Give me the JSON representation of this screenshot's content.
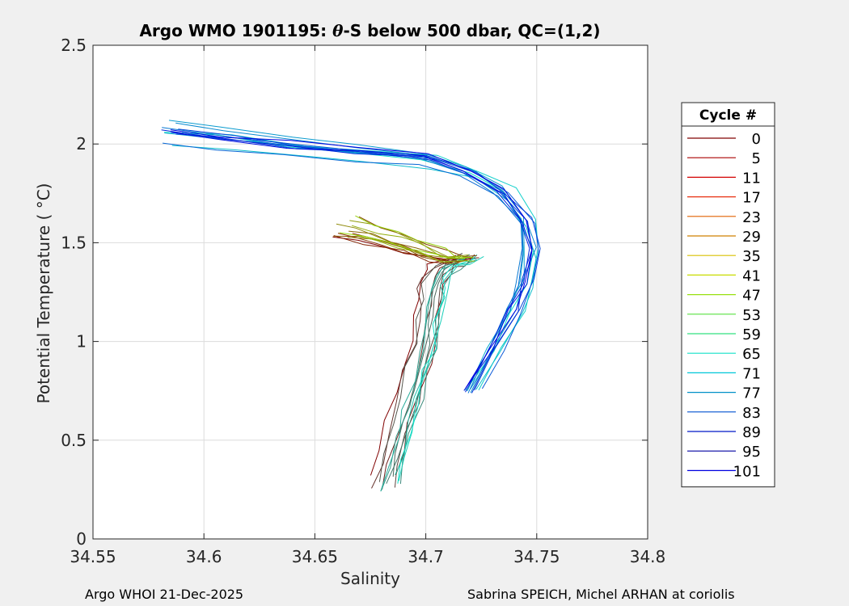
{
  "chart_data": {
    "type": "line",
    "title": "Argo WMO 1901195: θ-S below 500 dbar,  QC=(1,2)",
    "title_parts": {
      "pre": "Argo WMO 1901195: ",
      "theta": "θ",
      "post": "-S below 500 dbar,  QC=(1,2)"
    },
    "xlabel": "Salinity",
    "ylabel": "Potential Temperature ( °C)",
    "xlim": [
      34.55,
      34.8
    ],
    "ylim": [
      0,
      2.5
    ],
    "xticks": [
      34.55,
      34.6,
      34.65,
      34.7,
      34.75,
      34.8
    ],
    "xtick_labels": [
      "34.55",
      "34.6",
      "34.65",
      "34.7",
      "34.75",
      "34.8"
    ],
    "yticks": [
      0,
      0.5,
      1,
      1.5,
      2,
      2.5
    ],
    "ytick_labels": [
      "0",
      "0.5",
      "1",
      "1.5",
      "2",
      "2.5"
    ],
    "grid": true,
    "legend": {
      "title": "Cycle #",
      "placement": "right-outside",
      "labels": [
        "0",
        "5",
        "11",
        "17",
        "23",
        "29",
        "35",
        "41",
        "47",
        "53",
        "59",
        "65",
        "71",
        "77",
        "83",
        "89",
        "95",
        "101"
      ],
      "colors": [
        "#800000",
        "#aa0000",
        "#d40000",
        "#e83010",
        "#e06000",
        "#d08000",
        "#d8c000",
        "#c8dc00",
        "#98e010",
        "#58e040",
        "#30e080",
        "#10e0c8",
        "#00c8d8",
        "#0090c8",
        "#0050d0",
        "#0018c8",
        "#0000a0",
        "#0000e0"
      ]
    },
    "series": [
      {
        "group": "deep-branch",
        "cycles": "0-59",
        "color_range": [
          "#800000",
          "#10e0c8"
        ],
        "x": [
          34.682,
          34.684,
          34.688,
          34.692,
          34.696,
          34.699,
          34.701,
          34.702,
          34.703,
          34.705,
          34.708,
          34.713,
          34.719
        ],
        "y": [
          0.28,
          0.4,
          0.55,
          0.7,
          0.85,
          0.98,
          1.1,
          1.2,
          1.28,
          1.34,
          1.38,
          1.4,
          1.43
        ]
      },
      {
        "group": "shallow-branch-warm",
        "cycles": "0-47",
        "color_range": [
          "#800000",
          "#98e010"
        ],
        "x": [
          34.665,
          34.675,
          34.685,
          34.695,
          34.705,
          34.712,
          34.718
        ],
        "y": [
          1.58,
          1.55,
          1.52,
          1.48,
          1.44,
          1.42,
          1.42
        ]
      },
      {
        "group": "upper-branch-blue",
        "cycles": "65-101",
        "color_range": [
          "#10e0c8",
          "#0000e0"
        ],
        "x": [
          34.585,
          34.61,
          34.64,
          34.67,
          34.7,
          34.72,
          34.735,
          34.745,
          34.748,
          34.745,
          34.74,
          34.73,
          34.72
        ],
        "y": [
          2.05,
          2.02,
          1.98,
          1.95,
          1.92,
          1.85,
          1.75,
          1.6,
          1.45,
          1.3,
          1.15,
          0.95,
          0.75
        ]
      }
    ]
  },
  "footer": {
    "left": "Argo WHOI 21-Dec-2025",
    "right": "Sabrina SPEICH, Michel ARHAN at coriolis"
  }
}
